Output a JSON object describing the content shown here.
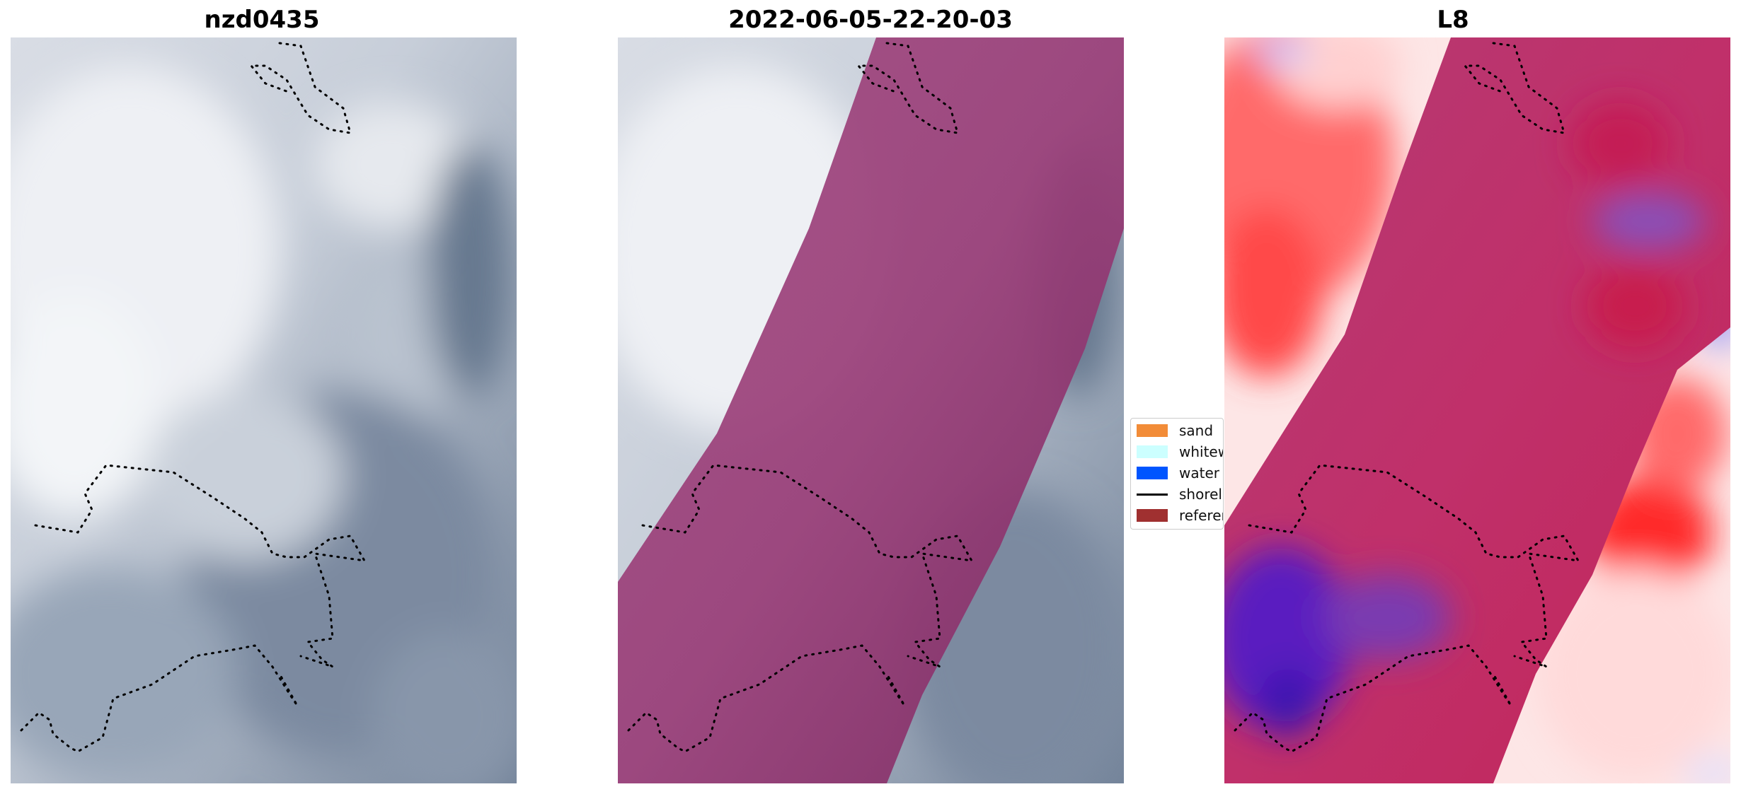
{
  "panels": [
    {
      "title": "nzd0435"
    },
    {
      "title": "2022-06-05-22-20-03"
    },
    {
      "title": "L8"
    }
  ],
  "legend": {
    "items": [
      {
        "label": "sand",
        "color": "#f28c38"
      },
      {
        "label": "whitew",
        "color": "#ccffff"
      },
      {
        "label": "water",
        "color": "#0055ff"
      },
      {
        "label": "shoreli",
        "color": "#000000"
      },
      {
        "label": "referen",
        "color": "#a03030"
      }
    ]
  },
  "colors": {
    "overlay_magenta": "#8a1f62",
    "ref_red": "#ff2020",
    "ref_blue": "#4a18c8"
  }
}
